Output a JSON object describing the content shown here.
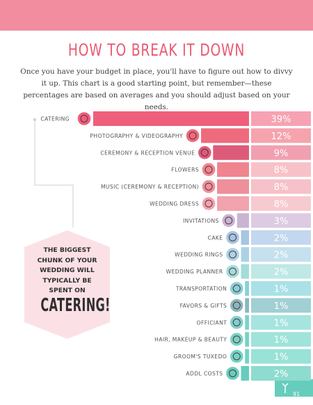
{
  "heading": "HOW TO BREAK IT DOWN",
  "intro": "Once you have your budget in place, you'll have to figure out how to divvy it up. This chart is a good starting point, but remember—these percentages are based on averages and you should adjust based on your needs.",
  "callout": {
    "line": "THE BIGGEST CHUNK OF YOUR WEDDING WILL TYPICALLY BE SPENT ON",
    "highlight": "CATERING!"
  },
  "page_number": "91",
  "colors": {
    "accent": "#ea5a72",
    "band": "#f28da0",
    "callout": "#fbe1e6"
  },
  "chart_data": {
    "type": "bar",
    "orientation": "horizontal",
    "title": "HOW TO BREAK IT DOWN",
    "categories": [
      "CATERING",
      "PHOTOGRAPHY & VIDEOGRAPHY",
      "CEREMONY & RECEPTION VENUE",
      "FLOWERS",
      "MUSIC (CEREMONY & RECEPTION)",
      "WEDDING DRESS",
      "INVITATIONS",
      "CAKE",
      "WEDDING RINGS",
      "WEDDING PLANNER",
      "TRANSPORTATION",
      "FAVORS & GIFTS",
      "OFFICIANT",
      "HAIR, MAKEUP & BEAUTY",
      "GROOM'S TUXEDO",
      "ADDL COSTS"
    ],
    "values": [
      39,
      12,
      9,
      8,
      8,
      8,
      3,
      2,
      2,
      2,
      1,
      1,
      1,
      1,
      1,
      2
    ],
    "value_labels": [
      "39%",
      "12%",
      "9%",
      "8%",
      "8%",
      "8%",
      "3%",
      "2%",
      "2%",
      "2%",
      "1%",
      "1%",
      "1%",
      "1%",
      "1%",
      "2%"
    ],
    "icons": [
      "cloche-icon",
      "camera-icon",
      "venue-icon",
      "flower-icon",
      "guitar-icon",
      "hanger-icon",
      "envelope-icon",
      "cake-icon",
      "rings-icon",
      "planner-icon",
      "car-icon",
      "gift-icon",
      "officiant-icon",
      "lips-icon",
      "bowtie-icon",
      "heart-icon"
    ],
    "bar_colors": [
      "#ef5f7c",
      "#ef6a7c",
      "#dd5b7a",
      "#f0848e",
      "#ee8f9a",
      "#f1a3ae",
      "#c9b4d4",
      "#a6c6e2",
      "#a9d3e4",
      "#a3dcd9",
      "#89cfd6",
      "#8ab8bd",
      "#7fd0cb",
      "#78d2c6",
      "#72d4c6",
      "#66cdbd"
    ],
    "pct_colors": [
      "#f7a2b2",
      "#f6a3ad",
      "#f1a0b2",
      "#f8c1c7",
      "#f6c1c8",
      "#f7cad0",
      "#dccbe2",
      "#c3d7ee",
      "#c5e1ee",
      "#bfe8e6",
      "#a9e1e6",
      "#a1cfd4",
      "#a6e4e0",
      "#9fe3da",
      "#98e2d7",
      "#8edbcf"
    ]
  }
}
